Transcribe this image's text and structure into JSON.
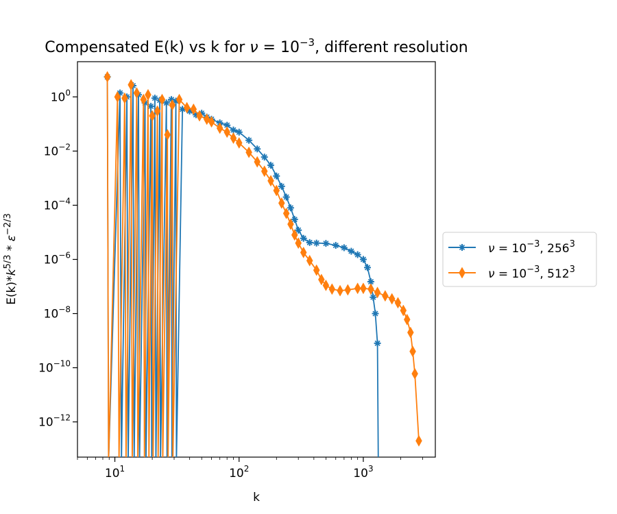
{
  "chart_data": {
    "type": "line",
    "title_text": "Compensated E(k) vs k for ",
    "title_nu": "ν",
    "title_eq": " = 10",
    "title_exp": "−3",
    "title_tail": ", different resolution",
    "xlabel": "k",
    "ylabel_text": "E(k)*",
    "ylabel_k": "k",
    "ylabel_kexp": "5/3",
    "ylabel_eps": " * ε",
    "ylabel_epsexp": "−2/3",
    "x_scale": "log",
    "y_scale": "log",
    "xlim": [
      5,
      3800
    ],
    "ylim": [
      5e-14,
      20
    ],
    "grid": false,
    "legend_position": "right, outside the axes",
    "xticks": [
      {
        "value": 10,
        "base": "10",
        "exp": "1"
      },
      {
        "value": 100,
        "base": "10",
        "exp": "2"
      },
      {
        "value": 1000,
        "base": "10",
        "exp": "3"
      }
    ],
    "yticks": [
      {
        "value": 1,
        "base": "10",
        "exp": "0"
      },
      {
        "value": 0.01,
        "base": "10",
        "exp": "−2"
      },
      {
        "value": 0.0001,
        "base": "10",
        "exp": "−4"
      },
      {
        "value": 1e-06,
        "base": "10",
        "exp": "−6"
      },
      {
        "value": 1e-08,
        "base": "10",
        "exp": "−8"
      },
      {
        "value": 1e-10,
        "base": "10",
        "exp": "−10"
      },
      {
        "value": 1e-12,
        "base": "10",
        "exp": "−12"
      }
    ],
    "series": [
      {
        "name_nu": "ν",
        "name_eq": " = 10",
        "name_exp": "−3",
        "name_res": ", 256",
        "name_resexp": "3",
        "color": "#1f77b4",
        "marker": "star",
        "points": [
          [
            8.7,
            5.5
          ],
          [
            8.9,
            1e-14
          ],
          [
            11.0,
            1.4
          ],
          [
            11.3,
            1e-14
          ],
          [
            12.5,
            1.0
          ],
          [
            12.8,
            1e-14
          ],
          [
            14.0,
            2.6
          ],
          [
            14.3,
            1e-14
          ],
          [
            15.5,
            1.2
          ],
          [
            15.8,
            1e-14
          ],
          [
            17.5,
            0.6
          ],
          [
            17.8,
            1e-14
          ],
          [
            19.5,
            0.45
          ],
          [
            19.8,
            1e-14
          ],
          [
            21.0,
            0.9
          ],
          [
            21.4,
            1e-14
          ],
          [
            23.0,
            0.75
          ],
          [
            23.3,
            1e-14
          ],
          [
            26.0,
            0.6
          ],
          [
            26.3,
            1e-14
          ],
          [
            28.5,
            0.8
          ],
          [
            28.8,
            1e-14
          ],
          [
            31.0,
            0.7
          ],
          [
            31.3,
            1e-14
          ],
          [
            35,
            0.35
          ],
          [
            40,
            0.3
          ],
          [
            45,
            0.22
          ],
          [
            50,
            0.25
          ],
          [
            55,
            0.18
          ],
          [
            60,
            0.15
          ],
          [
            70,
            0.11
          ],
          [
            80,
            0.09
          ],
          [
            90,
            0.06
          ],
          [
            100,
            0.05
          ],
          [
            120,
            0.025
          ],
          [
            140,
            0.012
          ],
          [
            160,
            0.006
          ],
          [
            180,
            0.003
          ],
          [
            200,
            0.0012
          ],
          [
            220,
            0.0005
          ],
          [
            240,
            0.0002
          ],
          [
            260,
            8e-05
          ],
          [
            280,
            3e-05
          ],
          [
            300,
            1.2e-05
          ],
          [
            330,
            6e-06
          ],
          [
            370,
            4.2e-06
          ],
          [
            420,
            4e-06
          ],
          [
            500,
            3.9e-06
          ],
          [
            600,
            3.3e-06
          ],
          [
            700,
            2.7e-06
          ],
          [
            800,
            2e-06
          ],
          [
            900,
            1.5e-06
          ],
          [
            1000,
            1e-06
          ],
          [
            1080,
            5e-07
          ],
          [
            1150,
            1.5e-07
          ],
          [
            1200,
            4e-08
          ],
          [
            1250,
            1e-08
          ],
          [
            1300,
            8e-10
          ],
          [
            1320,
            1e-14
          ]
        ]
      },
      {
        "name_nu": "ν",
        "name_eq": " = 10",
        "name_exp": "−3",
        "name_res": ", 512",
        "name_resexp": "3",
        "color": "#ff7f0e",
        "marker": "thin_diamond",
        "points": [
          [
            8.7,
            5.5
          ],
          [
            8.9,
            1e-14
          ],
          [
            10.5,
            1.0
          ],
          [
            10.8,
            1e-14
          ],
          [
            12.0,
            0.9
          ],
          [
            12.3,
            1e-14
          ],
          [
            13.5,
            2.8
          ],
          [
            13.8,
            1e-14
          ],
          [
            15.0,
            1.4
          ],
          [
            15.3,
            1e-14
          ],
          [
            17.0,
            0.8
          ],
          [
            17.3,
            1e-14
          ],
          [
            18.5,
            1.2
          ],
          [
            18.8,
            1e-14
          ],
          [
            20.0,
            0.2
          ],
          [
            20.3,
            1e-14
          ],
          [
            22.0,
            0.3
          ],
          [
            22.3,
            1e-14
          ],
          [
            24.0,
            0.8
          ],
          [
            24.3,
            1e-14
          ],
          [
            26.5,
            0.04
          ],
          [
            26.8,
            1e-14
          ],
          [
            29.0,
            0.5
          ],
          [
            29.3,
            1e-14
          ],
          [
            33,
            0.8
          ],
          [
            38,
            0.4
          ],
          [
            43,
            0.35
          ],
          [
            48,
            0.2
          ],
          [
            55,
            0.15
          ],
          [
            60,
            0.12
          ],
          [
            70,
            0.07
          ],
          [
            80,
            0.05
          ],
          [
            90,
            0.03
          ],
          [
            100,
            0.02
          ],
          [
            120,
            0.009
          ],
          [
            140,
            0.004
          ],
          [
            160,
            0.0018
          ],
          [
            180,
            0.0008
          ],
          [
            200,
            0.00035
          ],
          [
            220,
            0.00012
          ],
          [
            240,
            5e-05
          ],
          [
            260,
            2e-05
          ],
          [
            280,
            8e-06
          ],
          [
            300,
            4e-06
          ],
          [
            330,
            1.8e-06
          ],
          [
            370,
            9e-07
          ],
          [
            420,
            4e-07
          ],
          [
            460,
            1.8e-07
          ],
          [
            500,
            1.1e-07
          ],
          [
            560,
            8e-08
          ],
          [
            650,
            7e-08
          ],
          [
            750,
            7.5e-08
          ],
          [
            900,
            8.5e-08
          ],
          [
            1000,
            8.5e-08
          ],
          [
            1150,
            8e-08
          ],
          [
            1300,
            6e-08
          ],
          [
            1500,
            4.5e-08
          ],
          [
            1700,
            3.5e-08
          ],
          [
            1900,
            2.5e-08
          ],
          [
            2100,
            1.3e-08
          ],
          [
            2250,
            6e-09
          ],
          [
            2400,
            2e-09
          ],
          [
            2500,
            4e-10
          ],
          [
            2600,
            6e-11
          ],
          [
            2800,
            2e-13
          ]
        ]
      }
    ]
  }
}
